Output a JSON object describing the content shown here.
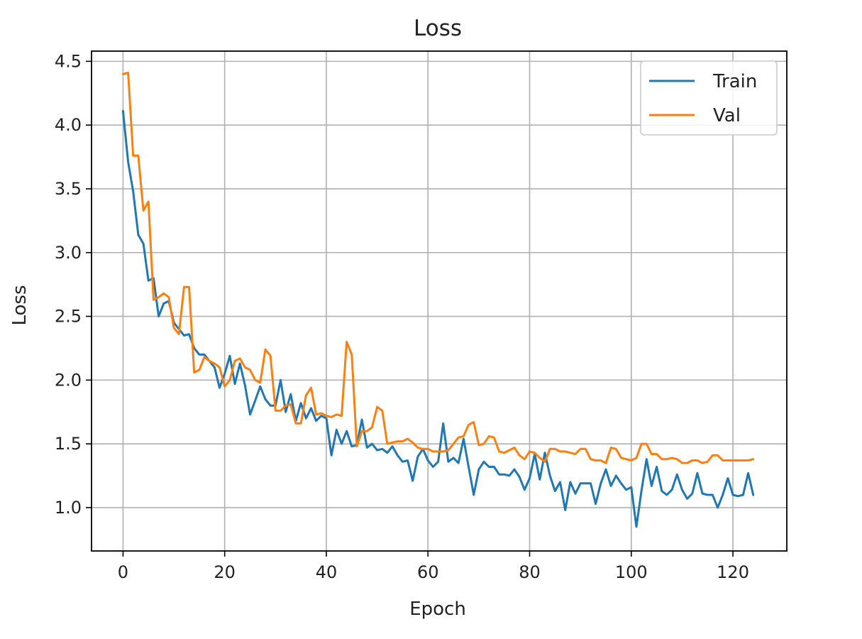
{
  "chart_data": {
    "type": "line",
    "title": "Loss",
    "xlabel": "Epoch",
    "ylabel": "Loss",
    "xlim": [
      -6.2,
      130.6
    ],
    "ylim": [
      0.66,
      4.58
    ],
    "xticks": [
      0,
      20,
      40,
      60,
      80,
      100,
      120
    ],
    "yticks": [
      1.0,
      1.5,
      2.0,
      2.5,
      3.0,
      3.5,
      4.0,
      4.5
    ],
    "xtick_labels": [
      "0",
      "20",
      "40",
      "60",
      "80",
      "100",
      "120"
    ],
    "ytick_labels": [
      "1.0",
      "1.5",
      "2.0",
      "2.5",
      "3.0",
      "3.5",
      "4.0",
      "4.5"
    ],
    "grid": true,
    "legend_position": "top-right",
    "series": [
      {
        "name": "Train",
        "color": "#1f77b4",
        "values": [
          4.11,
          3.71,
          3.48,
          3.14,
          3.07,
          2.78,
          2.8,
          2.5,
          2.6,
          2.62,
          2.45,
          2.4,
          2.35,
          2.36,
          2.25,
          2.2,
          2.2,
          2.15,
          2.1,
          1.94,
          2.05,
          2.19,
          1.97,
          2.13,
          1.96,
          1.73,
          1.84,
          1.95,
          1.85,
          1.8,
          1.8,
          2.0,
          1.75,
          1.89,
          1.68,
          1.82,
          1.7,
          1.78,
          1.68,
          1.72,
          1.7,
          1.41,
          1.61,
          1.5,
          1.6,
          1.48,
          1.49,
          1.69,
          1.47,
          1.5,
          1.45,
          1.46,
          1.43,
          1.48,
          1.41,
          1.36,
          1.37,
          1.21,
          1.4,
          1.46,
          1.37,
          1.32,
          1.36,
          1.66,
          1.36,
          1.39,
          1.35,
          1.54,
          1.32,
          1.1,
          1.3,
          1.36,
          1.32,
          1.32,
          1.26,
          1.26,
          1.25,
          1.3,
          1.24,
          1.14,
          1.23,
          1.42,
          1.22,
          1.43,
          1.25,
          1.13,
          1.2,
          0.98,
          1.2,
          1.11,
          1.19,
          1.19,
          1.19,
          1.03,
          1.19,
          1.3,
          1.17,
          1.25,
          1.19,
          1.14,
          1.16,
          0.85,
          1.13,
          1.38,
          1.17,
          1.32,
          1.13,
          1.1,
          1.14,
          1.26,
          1.14,
          1.07,
          1.11,
          1.27,
          1.11,
          1.1,
          1.1,
          1.0,
          1.1,
          1.23,
          1.1,
          1.09,
          1.1,
          1.27,
          1.1
        ]
      },
      {
        "name": "Val",
        "color": "#ff7f0e",
        "values": [
          4.4,
          4.41,
          3.76,
          3.76,
          3.33,
          3.4,
          2.63,
          2.65,
          2.68,
          2.65,
          2.41,
          2.36,
          2.73,
          2.73,
          2.06,
          2.08,
          2.18,
          2.15,
          2.13,
          2.1,
          1.95,
          2.0,
          2.15,
          2.17,
          2.1,
          2.08,
          2.0,
          1.98,
          2.24,
          2.19,
          1.76,
          1.76,
          1.8,
          1.81,
          1.66,
          1.66,
          1.88,
          1.94,
          1.73,
          1.74,
          1.72,
          1.71,
          1.73,
          1.72,
          2.3,
          2.2,
          1.48,
          1.6,
          1.6,
          1.63,
          1.79,
          1.76,
          1.5,
          1.51,
          1.52,
          1.52,
          1.54,
          1.51,
          1.47,
          1.46,
          1.46,
          1.44,
          1.44,
          1.44,
          1.45,
          1.5,
          1.55,
          1.56,
          1.65,
          1.67,
          1.49,
          1.5,
          1.56,
          1.55,
          1.44,
          1.43,
          1.45,
          1.47,
          1.41,
          1.38,
          1.44,
          1.43,
          1.39,
          1.36,
          1.46,
          1.46,
          1.44,
          1.44,
          1.43,
          1.42,
          1.46,
          1.46,
          1.38,
          1.37,
          1.37,
          1.35,
          1.47,
          1.46,
          1.39,
          1.38,
          1.37,
          1.39,
          1.5,
          1.5,
          1.42,
          1.42,
          1.38,
          1.38,
          1.39,
          1.38,
          1.35,
          1.35,
          1.37,
          1.37,
          1.35,
          1.36,
          1.41,
          1.41,
          1.37,
          1.37,
          1.37,
          1.37,
          1.37,
          1.37,
          1.38
        ]
      }
    ]
  }
}
